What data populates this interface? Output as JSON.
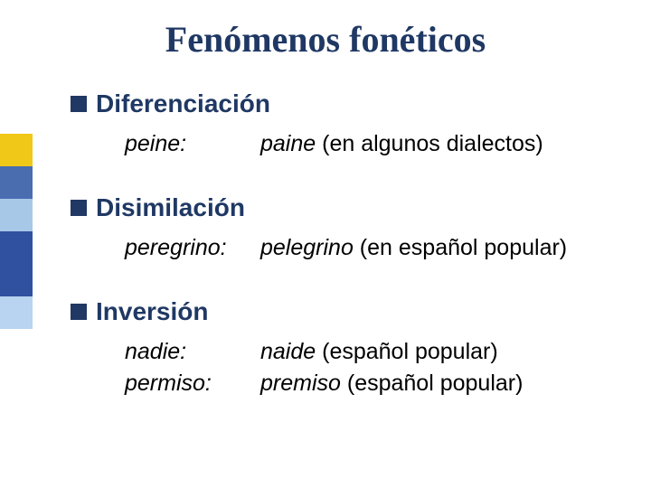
{
  "title": "Fenómenos fonéticos",
  "sidebar_colors": [
    "#f0c818",
    "#4a6db0",
    "#a8c8e8",
    "#3050a0",
    "#3050a0",
    "#b8d4f0"
  ],
  "bullet_color": "#1f3864",
  "heading_color": "#1f3864",
  "sections": [
    {
      "heading": "Diferenciación",
      "rows": [
        {
          "left": "peine:",
          "right_ital": "paine",
          "right_rest": " (en algunos dialectos)"
        }
      ]
    },
    {
      "heading": "Disimilación",
      "rows": [
        {
          "left": "peregrino:",
          "right_ital": "pelegrino",
          "right_rest": " (en español popular)"
        }
      ]
    },
    {
      "heading": "Inversión",
      "rows": [
        {
          "left": "nadie:",
          "right_ital": "naide",
          "right_rest": " (español popular)"
        },
        {
          "left": "permiso:",
          "right_ital": "premiso",
          "right_rest": " (español popular)"
        }
      ]
    }
  ]
}
